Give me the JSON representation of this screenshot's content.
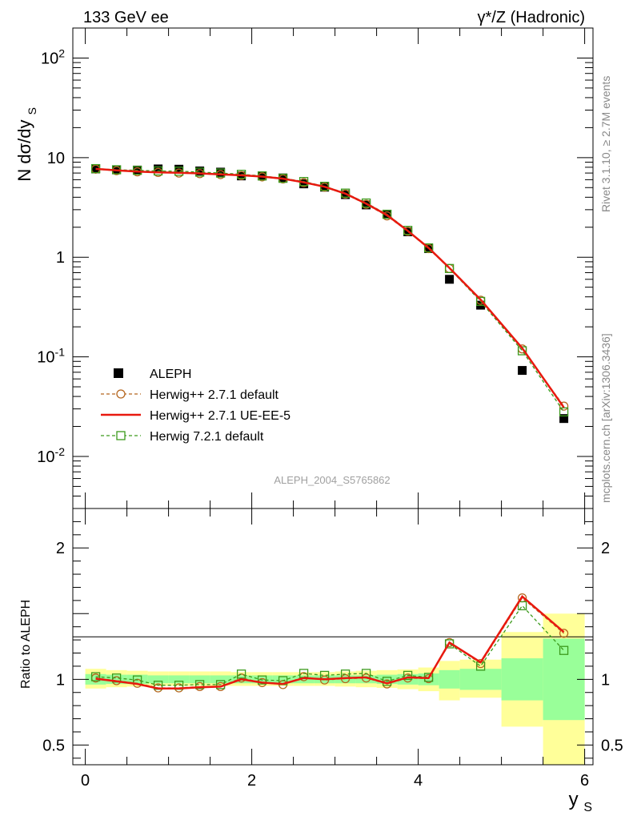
{
  "header": {
    "left_title": "133 GeV ee",
    "right_title": "γ*/Z (Hadronic)"
  },
  "side_labels": {
    "rivet": "Rivet 3.1.10, ≥ 2.7M events",
    "mcplots": "mcplots.cern.ch [arXiv:1306.3436]"
  },
  "analysis_id": "ALEPH_2004_S5765862",
  "colors": {
    "data": "#000000",
    "herwig_default": "#b5651d",
    "herwig_ue": "#e8190f",
    "herwig7": "#3c9a1c",
    "band_inner": "#99ff99",
    "band_outer": "#ffff99"
  },
  "chart_data": [
    {
      "type": "scatter",
      "ylabel": "N dσ/dy_S",
      "yscale": "log",
      "ylim": [
        0.003,
        200
      ],
      "xlim": [
        -0.15,
        6.1
      ],
      "y_tick_labels": [
        "10^-2",
        "10^-1",
        "1",
        "10",
        "10^2"
      ],
      "x": [
        0.125,
        0.375,
        0.625,
        0.875,
        1.125,
        1.375,
        1.625,
        1.875,
        2.125,
        2.375,
        2.625,
        2.875,
        3.125,
        3.375,
        3.625,
        3.875,
        4.125,
        4.375,
        4.75,
        5.25,
        5.75
      ],
      "series": [
        {
          "name": "ALEPH",
          "style": "data",
          "values": [
            7.7,
            7.55,
            7.5,
            7.7,
            7.65,
            7.35,
            7.15,
            6.55,
            6.55,
            6.25,
            5.45,
            5.05,
            4.25,
            3.35,
            2.7,
            1.8,
            1.22,
            0.6,
            0.33,
            0.073,
            0.024
          ]
        },
        {
          "name": "Herwig++ 2.7.1 default",
          "style": "herwig_default",
          "values": [
            7.65,
            7.4,
            7.2,
            7.1,
            7.0,
            6.9,
            6.75,
            6.6,
            6.4,
            6.1,
            5.6,
            5.05,
            4.3,
            3.4,
            2.6,
            1.82,
            1.22,
            0.77,
            0.37,
            0.12,
            0.032
          ]
        },
        {
          "name": "Herwig++ 2.7.1 UE-EE-5",
          "style": "herwig_ue",
          "values": [
            7.7,
            7.45,
            7.25,
            7.1,
            7.05,
            6.95,
            6.8,
            6.65,
            6.45,
            6.15,
            5.65,
            5.1,
            4.35,
            3.45,
            2.65,
            1.84,
            1.24,
            0.78,
            0.375,
            0.122,
            0.031
          ]
        },
        {
          "name": "Herwig 7.2.1 default",
          "style": "herwig7",
          "values": [
            7.75,
            7.55,
            7.45,
            7.35,
            7.3,
            7.15,
            7.0,
            6.8,
            6.55,
            6.2,
            5.75,
            5.15,
            4.4,
            3.5,
            2.7,
            1.86,
            1.24,
            0.77,
            0.36,
            0.115,
            0.028
          ]
        }
      ]
    },
    {
      "type": "scatter",
      "xlabel": "y_S",
      "ylabel": "Ratio to ALEPH",
      "ylim": [
        0.35,
        2.3
      ],
      "xlim": [
        -0.15,
        6.1
      ],
      "x_tick_labels": [
        "0",
        "2",
        "4",
        "6"
      ],
      "y_tick_labels": [
        "0.5",
        "1",
        "2"
      ],
      "x": [
        0.125,
        0.375,
        0.625,
        0.875,
        1.125,
        1.375,
        1.625,
        1.875,
        2.125,
        2.375,
        2.625,
        2.875,
        3.125,
        3.375,
        3.625,
        3.875,
        4.125,
        4.375,
        4.75,
        5.25,
        5.75
      ],
      "bins_lo": [
        0,
        0.25,
        0.5,
        0.75,
        1.0,
        1.25,
        1.5,
        1.75,
        2.0,
        2.25,
        2.5,
        2.75,
        3.0,
        3.25,
        3.5,
        3.75,
        4.0,
        4.25,
        4.5,
        5.0,
        5.5
      ],
      "bins_hi": [
        0.25,
        0.5,
        0.75,
        1.0,
        1.25,
        1.5,
        1.75,
        2.0,
        2.25,
        2.5,
        2.75,
        3.0,
        3.25,
        3.5,
        3.75,
        4.0,
        4.25,
        4.5,
        5.0,
        5.5,
        6.0
      ],
      "band_inner": [
        [
          0.96,
          1.04
        ],
        [
          0.965,
          1.035
        ],
        [
          0.965,
          1.035
        ],
        [
          0.97,
          1.03
        ],
        [
          0.97,
          1.03
        ],
        [
          0.97,
          1.03
        ],
        [
          0.97,
          1.03
        ],
        [
          0.97,
          1.03
        ],
        [
          0.97,
          1.03
        ],
        [
          0.97,
          1.03
        ],
        [
          0.97,
          1.03
        ],
        [
          0.97,
          1.03
        ],
        [
          0.97,
          1.03
        ],
        [
          0.97,
          1.03
        ],
        [
          0.965,
          1.035
        ],
        [
          0.96,
          1.04
        ],
        [
          0.955,
          1.045
        ],
        [
          0.93,
          1.07
        ],
        [
          0.92,
          1.08
        ],
        [
          0.84,
          1.16
        ],
        [
          0.69,
          1.31
        ]
      ],
      "band_outer": [
        [
          0.93,
          1.08
        ],
        [
          0.94,
          1.07
        ],
        [
          0.945,
          1.065
        ],
        [
          0.95,
          1.06
        ],
        [
          0.95,
          1.06
        ],
        [
          0.95,
          1.06
        ],
        [
          0.95,
          1.06
        ],
        [
          0.95,
          1.055
        ],
        [
          0.95,
          1.055
        ],
        [
          0.95,
          1.055
        ],
        [
          0.95,
          1.055
        ],
        [
          0.95,
          1.055
        ],
        [
          0.945,
          1.06
        ],
        [
          0.94,
          1.065
        ],
        [
          0.935,
          1.07
        ],
        [
          0.925,
          1.075
        ],
        [
          0.91,
          1.09
        ],
        [
          0.84,
          1.14
        ],
        [
          0.86,
          1.15
        ],
        [
          0.64,
          1.36
        ],
        [
          0.3,
          1.5
        ]
      ],
      "series": [
        {
          "name": "Herwig++ 2.7.1 default",
          "style": "herwig_default",
          "values": [
            1.01,
            0.99,
            0.97,
            0.935,
            0.935,
            0.945,
            0.945,
            1.01,
            0.975,
            0.96,
            1.02,
            0.995,
            1.005,
            1.01,
            0.965,
            1.01,
            1.005,
            1.28,
            1.12,
            1.62,
            1.35
          ]
        },
        {
          "name": "Herwig++ 2.7.1 UE-EE-5",
          "style": "herwig_ue",
          "values": [
            1.005,
            0.985,
            0.965,
            0.93,
            0.93,
            0.94,
            0.945,
            1.0,
            0.975,
            0.965,
            1.01,
            1.0,
            1.01,
            1.015,
            0.97,
            1.015,
            1.01,
            1.28,
            1.13,
            1.63,
            1.36
          ]
        },
        {
          "name": "Herwig 7.2.1 default",
          "style": "herwig7",
          "values": [
            1.02,
            1.01,
            0.995,
            0.955,
            0.955,
            0.96,
            0.96,
            1.04,
            0.995,
            0.99,
            1.045,
            1.03,
            1.04,
            1.045,
            0.985,
            1.03,
            1.015,
            1.27,
            1.1,
            1.56,
            1.22
          ]
        }
      ]
    }
  ]
}
